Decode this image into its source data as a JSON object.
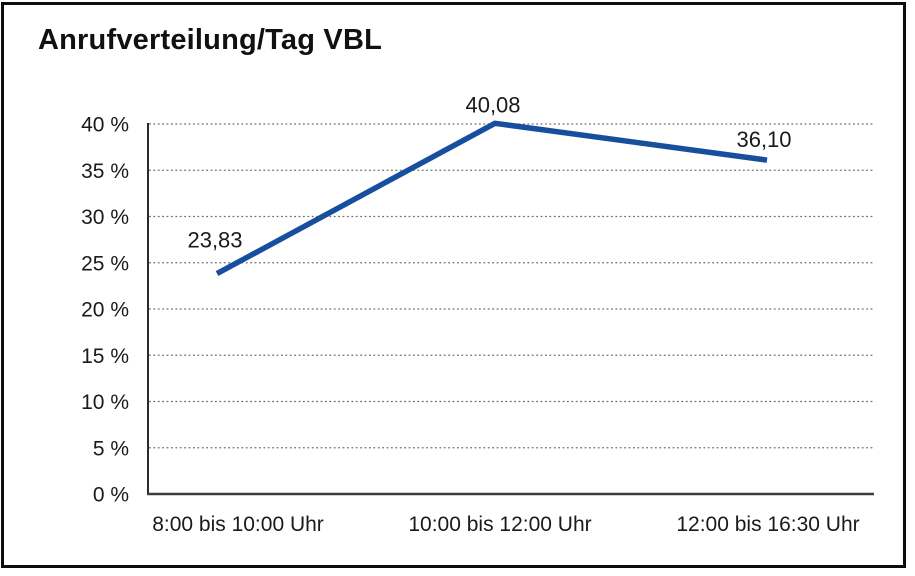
{
  "page": {
    "title": "Anrufverteilung/Tag VBL"
  },
  "chart_data": {
    "type": "line",
    "title": "Anrufverteilung/Tag VBL",
    "categories": [
      "8:00 bis 10:00 Uhr",
      "10:00 bis 12:00 Uhr",
      "12:00 bis 16:30 Uhr"
    ],
    "values": [
      23.83,
      40.08,
      36.1
    ],
    "point_labels": [
      "23,83",
      "40,08",
      "36,10"
    ],
    "y_ticks": [
      {
        "value": 0,
        "label": "0 %"
      },
      {
        "value": 5,
        "label": "5 %"
      },
      {
        "value": 10,
        "label": "10 %"
      },
      {
        "value": 15,
        "label": "15 %"
      },
      {
        "value": 20,
        "label": "20 %"
      },
      {
        "value": 25,
        "label": "25 %"
      },
      {
        "value": 30,
        "label": "30 %"
      },
      {
        "value": 35,
        "label": "35 %"
      },
      {
        "value": 40,
        "label": "40 %"
      }
    ],
    "ylim": [
      0,
      40
    ],
    "xlabel": "",
    "ylabel": "",
    "grid": "horizontal-dotted",
    "legend": "none",
    "colors": {
      "series_line": "#174f9e",
      "gridline": "#6e6e6e",
      "axis": "#2b2b2b",
      "text": "#1a1a1a"
    }
  }
}
